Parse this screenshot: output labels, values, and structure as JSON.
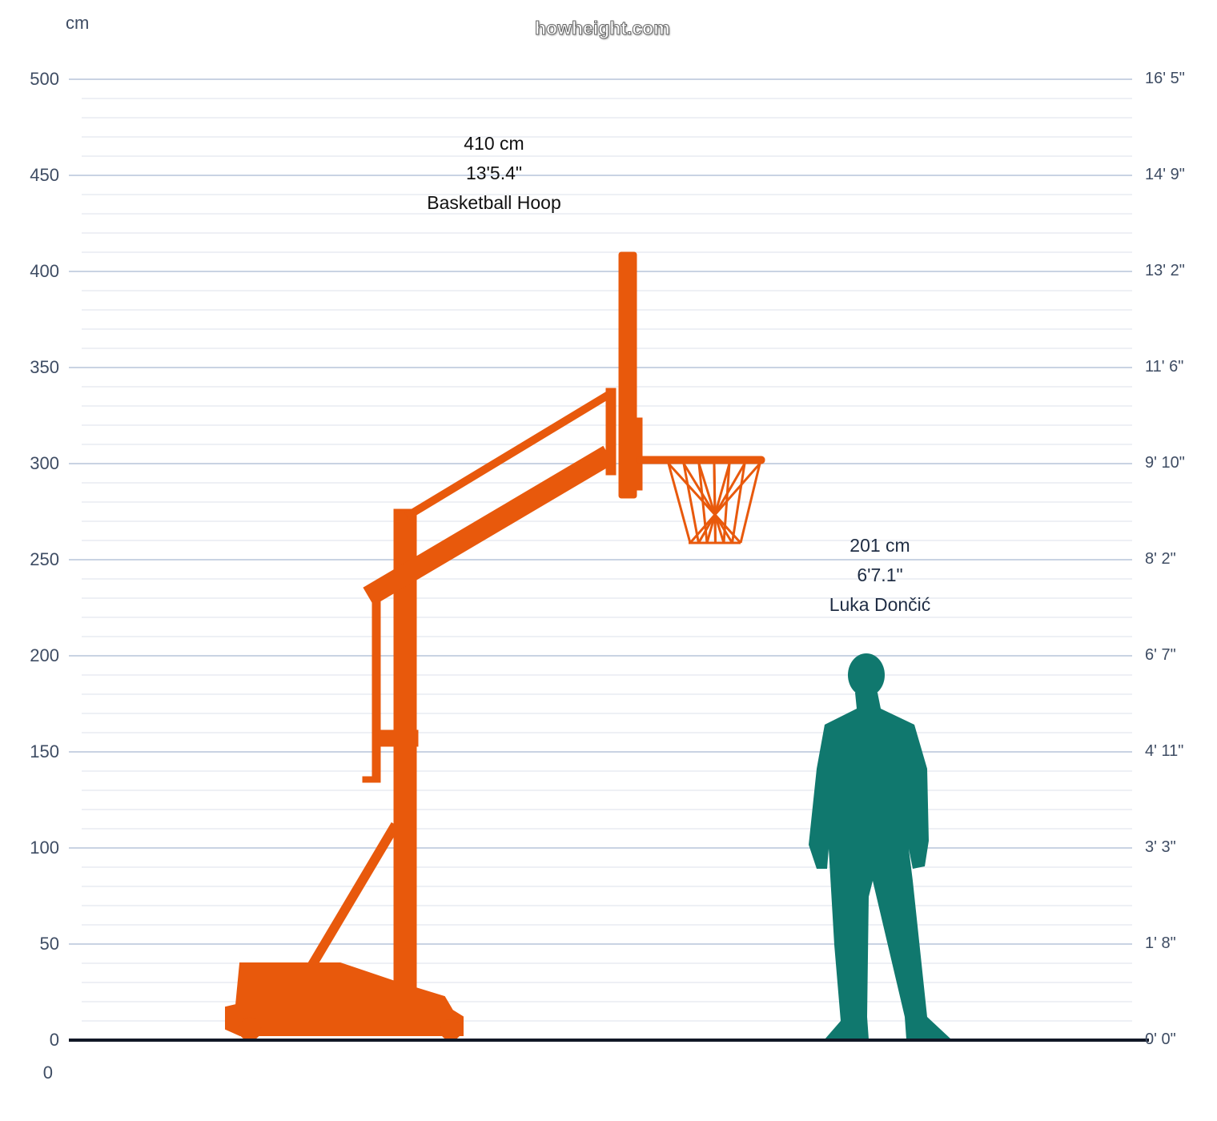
{
  "watermark": "howheight.com",
  "chart_data": {
    "type": "height-comparison",
    "ylabel": "cm",
    "ylim": [
      0,
      500
    ],
    "grid": true,
    "left_ticks": [
      "0",
      "50",
      "100",
      "150",
      "200",
      "250",
      "300",
      "350",
      "400",
      "450",
      "500"
    ],
    "right_ticks": [
      "0' 0\"",
      "1' 8\"",
      "3' 3\"",
      "4' 11\"",
      "6' 7\"",
      "8' 2\"",
      "9' 10\"",
      "11' 6\"",
      "13' 2\"",
      "14' 9\"",
      "16' 5\""
    ],
    "bottom_label": "0",
    "items": [
      {
        "name": "Basketball Hoop",
        "height_cm": 410,
        "cm_label": "410 cm",
        "ft_label": "13'5.4\"",
        "color": "#e8590c"
      },
      {
        "name": "Luka Dončić",
        "height_cm": 201,
        "cm_label": "201 cm",
        "ft_label": "6'7.1\"",
        "color": "#10786e"
      }
    ]
  }
}
